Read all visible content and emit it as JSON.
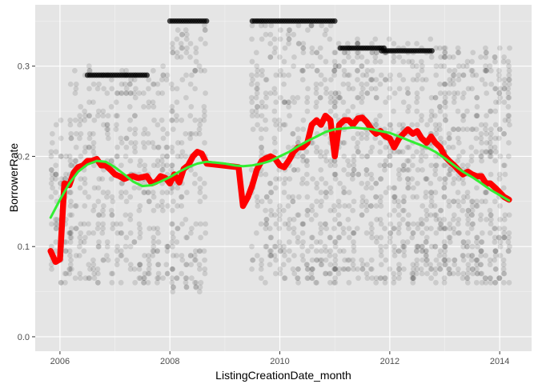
{
  "chart_data": {
    "type": "scatter",
    "title": "",
    "xlabel": "ListingCreationDate_month",
    "ylabel": "BorrowerRate",
    "xlim": [
      2005.55,
      2014.58
    ],
    "ylim": [
      -0.016,
      0.368
    ],
    "x_ticks": [
      2006,
      2008,
      2010,
      2012,
      2014
    ],
    "y_ticks": [
      0.0,
      0.1,
      0.2,
      0.3
    ],
    "x_tick_labels": [
      "2006",
      "2008",
      "2010",
      "2012",
      "2014"
    ],
    "y_tick_labels": [
      "0.0",
      "0.1",
      "0.2",
      "0.3"
    ],
    "grid": true,
    "background_color": "#e5e5e5",
    "point_color": "#000000",
    "point_alpha": 0.05,
    "scatter_columns": [
      {
        "x_start": 2005.85,
        "x_end": 2006.2,
        "y_min": 0.06,
        "y_max": 0.24
      },
      {
        "x_start": 2006.2,
        "x_end": 2008.05,
        "y_min": 0.06,
        "y_max": 0.3
      },
      {
        "x_start": 2008.05,
        "x_end": 2008.7,
        "y_min": 0.05,
        "y_max": 0.35
      },
      {
        "x_start": 2009.5,
        "x_end": 2011.0,
        "y_min": 0.06,
        "y_max": 0.35
      },
      {
        "x_start": 2011.0,
        "x_end": 2013.0,
        "y_min": 0.06,
        "y_max": 0.33
      },
      {
        "x_start": 2013.0,
        "x_end": 2014.2,
        "y_min": 0.06,
        "y_max": 0.32
      }
    ],
    "dense_bands": [
      {
        "x_start": 2006.5,
        "x_end": 2007.6,
        "y": 0.29
      },
      {
        "x_start": 2008.0,
        "x_end": 2008.7,
        "y": 0.35
      },
      {
        "x_start": 2009.5,
        "x_end": 2011.0,
        "y": 0.35
      },
      {
        "x_start": 2011.1,
        "x_end": 2011.9,
        "y": 0.32
      },
      {
        "x_start": 2011.85,
        "x_end": 2012.8,
        "y": 0.317
      }
    ],
    "series": [
      {
        "name": "",
        "type": "line",
        "color": "#ff0000",
        "x": [
          2005.83,
          2005.92,
          2006.0,
          2006.08,
          2006.17,
          2006.25,
          2006.33,
          2006.42,
          2006.5,
          2006.58,
          2006.67,
          2006.75,
          2006.83,
          2006.92,
          2007.0,
          2007.08,
          2007.17,
          2007.25,
          2007.33,
          2007.42,
          2007.5,
          2007.58,
          2007.67,
          2007.75,
          2007.83,
          2007.92,
          2008.0,
          2008.08,
          2008.17,
          2008.25,
          2008.33,
          2008.42,
          2008.5,
          2008.58,
          2008.67,
          2009.25,
          2009.33,
          2009.42,
          2009.5,
          2009.58,
          2009.67,
          2009.75,
          2009.83,
          2009.92,
          2010.0,
          2010.08,
          2010.17,
          2010.25,
          2010.33,
          2010.42,
          2010.5,
          2010.58,
          2010.67,
          2010.75,
          2010.83,
          2010.92,
          2011.0,
          2011.08,
          2011.17,
          2011.25,
          2011.33,
          2011.42,
          2011.5,
          2011.58,
          2011.67,
          2011.75,
          2011.83,
          2011.92,
          2012.0,
          2012.08,
          2012.17,
          2012.25,
          2012.33,
          2012.42,
          2012.5,
          2012.58,
          2012.67,
          2012.75,
          2012.83,
          2012.92,
          2013.0,
          2013.08,
          2013.17,
          2013.25,
          2013.33,
          2013.42,
          2013.5,
          2013.58,
          2013.67,
          2013.75,
          2013.83,
          2013.92,
          2014.0,
          2014.08,
          2014.17
        ],
        "y": [
          0.095,
          0.083,
          0.086,
          0.17,
          0.168,
          0.182,
          0.188,
          0.19,
          0.195,
          0.195,
          0.197,
          0.19,
          0.19,
          0.185,
          0.18,
          0.178,
          0.175,
          0.177,
          0.178,
          0.176,
          0.177,
          0.178,
          0.17,
          0.172,
          0.178,
          0.176,
          0.17,
          0.18,
          0.171,
          0.186,
          0.19,
          0.2,
          0.205,
          0.203,
          0.192,
          0.188,
          0.145,
          0.155,
          0.168,
          0.185,
          0.195,
          0.198,
          0.2,
          0.197,
          0.19,
          0.188,
          0.196,
          0.205,
          0.21,
          0.21,
          0.215,
          0.235,
          0.24,
          0.235,
          0.245,
          0.24,
          0.2,
          0.235,
          0.24,
          0.24,
          0.235,
          0.242,
          0.243,
          0.238,
          0.23,
          0.225,
          0.228,
          0.222,
          0.22,
          0.21,
          0.22,
          0.225,
          0.23,
          0.225,
          0.228,
          0.22,
          0.215,
          0.222,
          0.215,
          0.21,
          0.2,
          0.195,
          0.19,
          0.185,
          0.18,
          0.183,
          0.18,
          0.178,
          0.178,
          0.17,
          0.17,
          0.165,
          0.16,
          0.155,
          0.152
        ]
      },
      {
        "name": "",
        "type": "smooth",
        "color": "#33ee33",
        "x": [
          2005.83,
          2006.0,
          2006.17,
          2006.33,
          2006.5,
          2006.67,
          2006.83,
          2007.0,
          2007.17,
          2007.33,
          2007.5,
          2007.67,
          2007.83,
          2008.0,
          2008.17,
          2008.33,
          2008.5,
          2008.67,
          2008.83,
          2009.0,
          2009.17,
          2009.33,
          2009.5,
          2009.67,
          2009.83,
          2010.0,
          2010.17,
          2010.33,
          2010.5,
          2010.67,
          2010.83,
          2011.0,
          2011.17,
          2011.33,
          2011.5,
          2011.67,
          2011.83,
          2012.0,
          2012.17,
          2012.33,
          2012.5,
          2012.67,
          2012.83,
          2013.0,
          2013.17,
          2013.33,
          2013.5,
          2013.67,
          2013.83,
          2014.0,
          2014.17
        ],
        "y": [
          0.132,
          0.152,
          0.17,
          0.183,
          0.191,
          0.195,
          0.194,
          0.188,
          0.18,
          0.172,
          0.167,
          0.168,
          0.172,
          0.177,
          0.183,
          0.188,
          0.192,
          0.194,
          0.193,
          0.192,
          0.19,
          0.189,
          0.19,
          0.192,
          0.195,
          0.2,
          0.205,
          0.211,
          0.217,
          0.222,
          0.227,
          0.23,
          0.231,
          0.232,
          0.231,
          0.23,
          0.228,
          0.226,
          0.222,
          0.218,
          0.214,
          0.21,
          0.205,
          0.198,
          0.19,
          0.183,
          0.177,
          0.17,
          0.163,
          0.157,
          0.151
        ]
      }
    ]
  }
}
